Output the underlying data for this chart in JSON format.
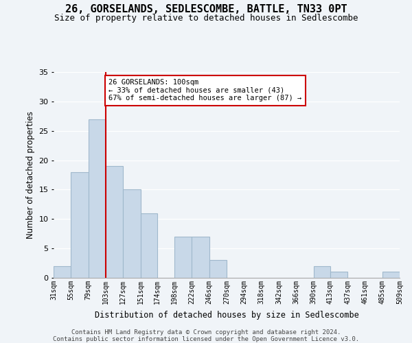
{
  "title": "26, GORSELANDS, SEDLESCOMBE, BATTLE, TN33 0PT",
  "subtitle": "Size of property relative to detached houses in Sedlescombe",
  "xlabel": "Distribution of detached houses by size in Sedlescombe",
  "ylabel": "Number of detached properties",
  "bar_color": "#c8d8e8",
  "bar_edgecolor": "#a0b8cc",
  "bin_edges": [
    31,
    55,
    79,
    103,
    127,
    151,
    174,
    198,
    222,
    246,
    270,
    294,
    318,
    342,
    366,
    390,
    413,
    437,
    461,
    485,
    509
  ],
  "bin_labels": [
    "31sqm",
    "55sqm",
    "79sqm",
    "103sqm",
    "127sqm",
    "151sqm",
    "174sqm",
    "198sqm",
    "222sqm",
    "246sqm",
    "270sqm",
    "294sqm",
    "318sqm",
    "342sqm",
    "366sqm",
    "390sqm",
    "413sqm",
    "437sqm",
    "461sqm",
    "485sqm",
    "509sqm"
  ],
  "counts": [
    2,
    18,
    27,
    19,
    15,
    11,
    0,
    7,
    7,
    3,
    0,
    0,
    0,
    0,
    0,
    2,
    1,
    0,
    0,
    1
  ],
  "ylim": [
    0,
    35
  ],
  "yticks": [
    0,
    5,
    10,
    15,
    20,
    25,
    30,
    35
  ],
  "property_line_x": 103,
  "annotation_title": "26 GORSELANDS: 100sqm",
  "annotation_line1": "← 33% of detached houses are smaller (43)",
  "annotation_line2": "67% of semi-detached houses are larger (87) →",
  "annotation_box_color": "#ffffff",
  "annotation_box_edgecolor": "#cc0000",
  "property_line_color": "#cc0000",
  "footer1": "Contains HM Land Registry data © Crown copyright and database right 2024.",
  "footer2": "Contains public sector information licensed under the Open Government Licence v3.0.",
  "background_color": "#f0f4f8"
}
